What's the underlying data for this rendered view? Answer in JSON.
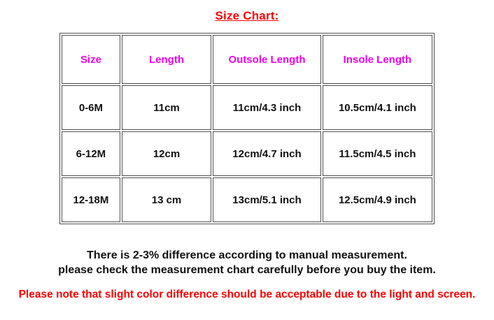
{
  "title": "Size Chart:",
  "table": {
    "headers": [
      "Size",
      "Length",
      "Outsole Length",
      "Insole Length"
    ],
    "rows": [
      [
        "0-6M",
        "11cm",
        "11cm/4.3 inch",
        "10.5cm/4.1 inch"
      ],
      [
        "6-12M",
        "12cm",
        "12cm/4.7 inch",
        "11.5cm/4.5 inch"
      ],
      [
        "12-18M",
        "13 cm",
        "13cm/5.1 inch",
        "12.5cm/4.9 inch"
      ]
    ]
  },
  "notes": {
    "measurement_line1": "There is 2-3% difference according to manual measurement.",
    "measurement_line2": "please check the measurement chart carefully before you buy the item.",
    "color_note": "Please note that slight color difference should be acceptable due to the light and screen."
  },
  "colors": {
    "title_red": "#FE0000",
    "header_magenta": "#EE00EE",
    "body_black": "#111111",
    "note_red": "#FE0000",
    "table_border": "#4D4D4D",
    "background": "#FFFFFF"
  }
}
